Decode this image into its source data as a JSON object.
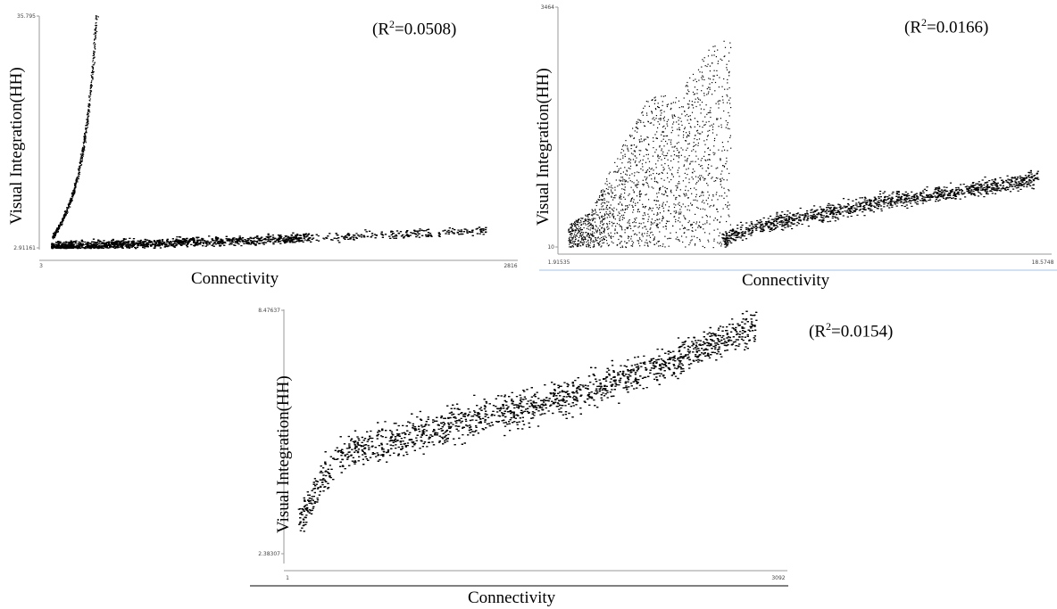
{
  "figures": [
    {
      "id": "top-left",
      "ylabel": "Visual Integration(HH)",
      "xlabel": "Connectivity",
      "r2_prefix": "(R",
      "r2_sup": "2",
      "r2_value": "=0.0508)",
      "ytick_top": "35.795",
      "ytick_bottom": "2.91161",
      "xtick_left": "3",
      "xtick_right": "2816"
    },
    {
      "id": "top-right",
      "ylabel": "Visual Integration(HH)",
      "xlabel": "Connectivity",
      "r2_prefix": "(R",
      "r2_sup": "2",
      "r2_value": "=0.0166)",
      "ytick_top": "3464",
      "ytick_bottom": "10",
      "xtick_left": "1.91535",
      "xtick_right": "18.5748"
    },
    {
      "id": "bottom",
      "ylabel": "Visual Integration(HH)",
      "xlabel": "Connectivity",
      "r2_prefix": "(R",
      "r2_sup": "2",
      "r2_value": "=0.0154)",
      "ytick_top": "8.47637",
      "ytick_bottom": "2.38307",
      "xtick_left": "1",
      "xtick_right": "3092"
    }
  ],
  "chart_data": [
    {
      "type": "scatter",
      "title": "",
      "xlabel": "Connectivity",
      "ylabel": "Visual Integration(HH)",
      "xlim": [
        3,
        2816
      ],
      "ylim": [
        2.91161,
        35.795
      ],
      "annotation": "(R2=0.0508)",
      "grid": false,
      "series": [
        {
          "name": "",
          "shape": "steep-curve",
          "x": [
            20,
            60,
            100,
            140,
            170,
            200,
            230,
            260,
            285
          ],
          "y": [
            4.5,
            6.0,
            8.0,
            10.5,
            13.0,
            16.5,
            21.0,
            28.0,
            35.5
          ]
        },
        {
          "name": "",
          "shape": "dense-band",
          "x": [
            10,
            300,
            600,
            900,
            1200,
            1500,
            1800,
            2100,
            2400,
            2650
          ],
          "y": [
            3.1,
            3.4,
            3.6,
            3.8,
            4.0,
            4.3,
            4.6,
            4.9,
            5.2,
            5.4
          ]
        }
      ]
    },
    {
      "type": "scatter",
      "title": "",
      "xlabel": "Connectivity",
      "ylabel": "Visual Integration(HH)",
      "xlim": [
        1.91535,
        18.5748
      ],
      "ylim": [
        10,
        3464
      ],
      "annotation": "(R2=0.0166)",
      "grid": false,
      "series": [
        {
          "name": "",
          "shape": "vertical-cluster",
          "x": [
            2.2,
            3.0,
            4.0,
            5.0,
            6.0,
            7.0,
            7.8
          ],
          "y": [
            300,
            500,
            1300,
            2000,
            2000,
            2600,
            2800
          ]
        },
        {
          "name": "",
          "shape": "rising-band",
          "x": [
            7.5,
            9,
            11,
            13,
            15,
            17,
            18.4
          ],
          "y": [
            120,
            350,
            500,
            680,
            780,
            900,
            1000
          ]
        }
      ]
    },
    {
      "type": "scatter",
      "title": "",
      "xlabel": "Connectivity",
      "ylabel": "Visual Integration(HH)",
      "xlim": [
        1,
        3092
      ],
      "ylim": [
        2.38307,
        8.47637
      ],
      "annotation": "(R2=0.0154)",
      "grid": false,
      "series": [
        {
          "name": "",
          "shape": "rising-band",
          "x": [
            50,
            300,
            600,
            900,
            1200,
            1500,
            1800,
            2100,
            2400,
            2700,
            2950
          ],
          "y": [
            3.2,
            4.9,
            5.2,
            5.5,
            5.8,
            6.1,
            6.4,
            6.8,
            7.2,
            7.7,
            8.1
          ]
        }
      ]
    }
  ]
}
